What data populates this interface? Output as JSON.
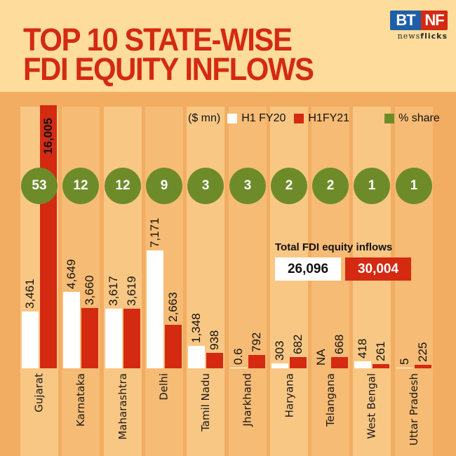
{
  "header": {
    "title_line1": "TOP 10 STATE-WISE",
    "title_line2": "FDI EQUITY INFLOWS",
    "logo": {
      "left": "BT",
      "right": "NF",
      "tagline_regular": "news",
      "tagline_bold": "flicks"
    }
  },
  "legend": {
    "unit": "($ mn)",
    "series1": "H1 FY20",
    "series2": "H1FY21",
    "share": "% share"
  },
  "totals": {
    "label": "Total FDI equity inflows",
    "h1fy20": "26,096",
    "h1fy21": "30,004"
  },
  "colors": {
    "header_bg": "#FDDC9C",
    "page_bg": "#F2AD62",
    "title": "#D42A12",
    "h1fy20": "#FFFFFF",
    "h1fy21": "#D42A12",
    "share": "#6E8B2A"
  },
  "chart_data": {
    "type": "bar",
    "title": "Top 10 State-wise FDI Equity Inflows",
    "ylabel": "$ mn",
    "categories": [
      "Gujarat",
      "Karnataka",
      "Maharashtra",
      "Delhi",
      "Tamil Nadu",
      "Jharkhand",
      "Haryana",
      "Telangana",
      "West Bengal",
      "Uttar Pradesh"
    ],
    "series": [
      {
        "name": "H1 FY20",
        "values": [
          3461,
          4649,
          3617,
          7171,
          1348,
          0.6,
          303,
          null,
          418,
          5
        ],
        "labels": [
          "3,461",
          "4,649",
          "3,617",
          "7,171",
          "1,348",
          "0.6",
          "303",
          "NA",
          "418",
          "5"
        ]
      },
      {
        "name": "H1FY21",
        "values": [
          16005,
          3660,
          3619,
          2663,
          938,
          792,
          682,
          668,
          261,
          225
        ],
        "labels": [
          "16,005",
          "3,660",
          "3,619",
          "2,663",
          "938",
          "792",
          "682",
          "668",
          "261",
          "225"
        ]
      },
      {
        "name": "% share",
        "values": [
          53,
          12,
          12,
          9,
          3,
          3,
          2,
          2,
          1,
          1
        ]
      }
    ],
    "totals": {
      "H1 FY20": 26096,
      "H1FY21": 30004
    },
    "grid": false,
    "legend_position": "top"
  }
}
